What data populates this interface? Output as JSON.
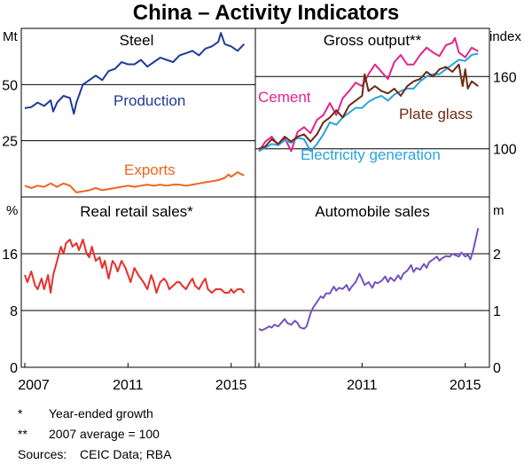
{
  "chart_data": {
    "title": "China – Activity Indicators",
    "x_axis": {
      "start": 2007.0,
      "end": 2015.8,
      "ticks": [
        2007,
        2011,
        2015
      ]
    },
    "panels": [
      {
        "id": "steel",
        "title": "Steel",
        "type": "line",
        "axis_side": "left",
        "unit": "Mt",
        "ylim": [
          0,
          75
        ],
        "yticks": [
          25,
          50
        ],
        "series": [
          {
            "name": "Production",
            "color": "#1f3b9a",
            "x": [
              2007.0,
              2007.25,
              2007.5,
              2007.75,
              2008.0,
              2008.1,
              2008.25,
              2008.5,
              2008.75,
              2008.9,
              2009.0,
              2009.25,
              2009.5,
              2009.75,
              2010.0,
              2010.25,
              2010.5,
              2010.75,
              2011.0,
              2011.25,
              2011.5,
              2011.75,
              2012.0,
              2012.25,
              2012.5,
              2012.75,
              2013.0,
              2013.25,
              2013.5,
              2013.75,
              2014.0,
              2014.25,
              2014.5,
              2014.6,
              2014.75,
              2015.0,
              2015.25,
              2015.5
            ],
            "y": [
              39.5,
              40,
              42,
              40.5,
              43,
              38,
              42,
              45,
              44,
              37,
              42,
              50,
              52,
              54,
              52,
              56,
              57,
              60,
              59,
              59,
              61,
              58,
              60,
              62,
              61,
              60,
              63,
              64,
              65,
              63,
              66,
              67,
              69,
              73,
              68,
              67,
              65,
              68
            ]
          },
          {
            "name": "Exports",
            "color": "#f0641e",
            "x": [
              2007.0,
              2007.25,
              2007.5,
              2007.75,
              2008.0,
              2008.25,
              2008.5,
              2008.75,
              2009.0,
              2009.25,
              2009.5,
              2009.75,
              2010.0,
              2010.25,
              2010.5,
              2010.75,
              2011.0,
              2011.25,
              2011.5,
              2011.75,
              2012.0,
              2012.25,
              2012.5,
              2012.75,
              2013.0,
              2013.25,
              2013.5,
              2013.75,
              2014.0,
              2014.25,
              2014.5,
              2014.75,
              2014.9,
              2015.0,
              2015.25,
              2015.5
            ],
            "y": [
              5,
              4,
              5,
              4.5,
              6,
              4.5,
              6,
              5,
              2,
              2.5,
              3,
              4,
              3,
              3.5,
              4,
              4.5,
              5,
              4.5,
              5,
              5.5,
              5,
              5.5,
              5,
              5.5,
              5.5,
              5,
              5.5,
              6,
              6.5,
              7,
              7.5,
              8.5,
              10,
              9,
              11,
              9.5
            ]
          }
        ]
      },
      {
        "id": "gross-output",
        "title": "Gross output**",
        "type": "line",
        "axis_side": "right",
        "unit": "index",
        "ylim": [
          60,
          200
        ],
        "yticks": [
          100,
          160
        ],
        "series": [
          {
            "name": "Cement",
            "color": "#e0268c",
            "x": [
              2007.0,
              2007.25,
              2007.5,
              2007.75,
              2008.0,
              2008.25,
              2008.5,
              2008.75,
              2009.0,
              2009.25,
              2009.5,
              2009.75,
              2010.0,
              2010.25,
              2010.5,
              2010.75,
              2011.0,
              2011.25,
              2011.5,
              2011.75,
              2012.0,
              2012.25,
              2012.5,
              2012.75,
              2013.0,
              2013.25,
              2013.5,
              2013.75,
              2014.0,
              2014.25,
              2014.5,
              2014.6,
              2014.75,
              2015.0,
              2015.25,
              2015.5
            ],
            "y": [
              98,
              106,
              110,
              103,
              109,
              98,
              114,
              118,
              113,
              124,
              128,
              138,
              128,
              142,
              148,
              155,
              152,
              162,
              170,
              164,
              158,
              172,
              178,
              170,
              170,
              178,
              184,
              180,
              177,
              186,
              188,
              192,
              180,
              176,
              184,
              181
            ]
          },
          {
            "name": "Electricity generation",
            "color": "#29a3dd",
            "x": [
              2007.0,
              2007.25,
              2007.5,
              2007.75,
              2008.0,
              2008.25,
              2008.5,
              2008.75,
              2009.0,
              2009.25,
              2009.5,
              2009.75,
              2010.0,
              2010.25,
              2010.5,
              2010.75,
              2011.0,
              2011.25,
              2011.5,
              2011.75,
              2012.0,
              2012.25,
              2012.5,
              2012.75,
              2013.0,
              2013.25,
              2013.5,
              2013.75,
              2014.0,
              2014.25,
              2014.5,
              2014.75,
              2015.0,
              2015.25,
              2015.5
            ],
            "y": [
              98,
              101,
              104,
              103,
              107,
              105,
              109,
              108,
              98,
              104,
              112,
              122,
              120,
              126,
              130,
              134,
              134,
              139,
              142,
              144,
              140,
              145,
              148,
              150,
              150,
              156,
              160,
              162,
              162,
              166,
              170,
              174,
              173,
              178,
              179
            ]
          },
          {
            "name": "Plate glass",
            "color": "#6e2a14",
            "x": [
              2007.0,
              2007.25,
              2007.5,
              2007.75,
              2008.0,
              2008.25,
              2008.5,
              2008.75,
              2009.0,
              2009.25,
              2009.5,
              2009.75,
              2010.0,
              2010.25,
              2010.5,
              2010.75,
              2011.0,
              2011.1,
              2011.25,
              2011.5,
              2011.75,
              2012.0,
              2012.25,
              2012.5,
              2012.75,
              2013.0,
              2013.25,
              2013.5,
              2013.75,
              2014.0,
              2014.25,
              2014.5,
              2014.75,
              2014.9,
              2015.0,
              2015.1,
              2015.25,
              2015.5
            ],
            "y": [
              100,
              102,
              108,
              104,
              110,
              106,
              110,
              112,
              106,
              112,
              122,
              126,
              132,
              126,
              136,
              140,
              144,
              162,
              148,
              152,
              148,
              146,
              150,
              144,
              152,
              156,
              158,
              164,
              160,
              166,
              168,
              164,
              170,
              152,
              166,
              150,
              156,
              152
            ]
          }
        ]
      },
      {
        "id": "retail",
        "title": "Real retail sales*",
        "type": "line",
        "axis_side": "left",
        "unit": "%",
        "ylim": [
          0,
          24
        ],
        "yticks": [
          0,
          8,
          16
        ],
        "series": [
          {
            "name": "Real retail sales",
            "color": "#e6302b",
            "x": [
              2007.0,
              2007.1,
              2007.25,
              2007.4,
              2007.5,
              2007.65,
              2007.75,
              2007.9,
              2008.0,
              2008.1,
              2008.25,
              2008.4,
              2008.5,
              2008.6,
              2008.75,
              2008.85,
              2009.0,
              2009.1,
              2009.25,
              2009.4,
              2009.5,
              2009.6,
              2009.75,
              2009.9,
              2010.0,
              2010.1,
              2010.25,
              2010.4,
              2010.5,
              2010.6,
              2010.75,
              2010.9,
              2011.0,
              2011.1,
              2011.25,
              2011.4,
              2011.5,
              2011.6,
              2011.75,
              2011.9,
              2012.0,
              2012.1,
              2012.25,
              2012.4,
              2012.5,
              2012.6,
              2012.75,
              2012.9,
              2013.0,
              2013.1,
              2013.25,
              2013.4,
              2013.5,
              2013.6,
              2013.75,
              2013.9,
              2014.0,
              2014.1,
              2014.25,
              2014.4,
              2014.5,
              2014.6,
              2014.75,
              2014.9,
              2015.0,
              2015.1,
              2015.25,
              2015.4,
              2015.5
            ],
            "y": [
              13,
              12,
              13.5,
              11.5,
              11,
              12.5,
              11,
              13,
              10.5,
              13,
              15,
              17,
              16,
              17.5,
              18,
              17,
              17.5,
              16.5,
              18,
              16,
              15.5,
              17,
              15,
              15.5,
              14,
              15,
              12.5,
              15,
              14.5,
              13.5,
              15,
              14,
              13,
              12,
              14,
              13,
              12.5,
              12,
              11,
              13,
              12,
              10.5,
              12,
              12.5,
              12,
              11,
              11.5,
              12,
              12,
              11.5,
              11,
              12,
              12.5,
              11.5,
              11,
              12,
              12.5,
              11,
              10.5,
              11,
              11,
              11,
              10.5,
              10.5,
              11,
              10.5,
              11,
              11,
              10.5
            ]
          }
        ]
      },
      {
        "id": "auto",
        "title": "Automobile sales",
        "type": "line",
        "axis_side": "right",
        "unit": "m",
        "ylim": [
          0,
          3
        ],
        "yticks": [
          0,
          1,
          2
        ],
        "series": [
          {
            "name": "Automobile sales",
            "color": "#7452c0",
            "x": [
              2007.0,
              2007.1,
              2007.25,
              2007.4,
              2007.5,
              2007.6,
              2007.75,
              2007.9,
              2008.0,
              2008.1,
              2008.25,
              2008.4,
              2008.5,
              2008.6,
              2008.75,
              2008.85,
              2009.0,
              2009.1,
              2009.25,
              2009.4,
              2009.5,
              2009.6,
              2009.75,
              2009.9,
              2010.0,
              2010.1,
              2010.25,
              2010.4,
              2010.5,
              2010.6,
              2010.75,
              2010.9,
              2011.0,
              2011.1,
              2011.25,
              2011.4,
              2011.5,
              2011.6,
              2011.75,
              2011.9,
              2012.0,
              2012.1,
              2012.25,
              2012.4,
              2012.5,
              2012.6,
              2012.75,
              2012.9,
              2013.0,
              2013.1,
              2013.25,
              2013.4,
              2013.5,
              2013.6,
              2013.75,
              2013.9,
              2014.0,
              2014.1,
              2014.25,
              2014.4,
              2014.5,
              2014.6,
              2014.75,
              2014.85,
              2015.0,
              2015.1,
              2015.2,
              2015.3,
              2015.4,
              2015.5
            ],
            "y": [
              0.68,
              0.65,
              0.68,
              0.72,
              0.7,
              0.75,
              0.72,
              0.8,
              0.85,
              0.78,
              0.75,
              0.82,
              0.78,
              0.7,
              0.68,
              0.72,
              0.95,
              1.05,
              1.15,
              1.25,
              1.22,
              1.3,
              1.3,
              1.42,
              1.35,
              1.4,
              1.38,
              1.45,
              1.35,
              1.42,
              1.5,
              1.65,
              1.55,
              1.45,
              1.5,
              1.4,
              1.5,
              1.48,
              1.52,
              1.6,
              1.5,
              1.58,
              1.52,
              1.62,
              1.55,
              1.65,
              1.7,
              1.8,
              1.68,
              1.75,
              1.72,
              1.82,
              1.75,
              1.85,
              1.9,
              1.95,
              1.88,
              1.92,
              1.96,
              1.95,
              2.0,
              1.98,
              1.95,
              2.02,
              1.95,
              1.98,
              1.9,
              2.05,
              2.25,
              2.45
            ]
          }
        ]
      }
    ],
    "x_tick_labels": [
      "2007",
      "2011",
      "2015"
    ],
    "footnotes": [
      {
        "marker": "*",
        "text": "Year-ended growth"
      },
      {
        "marker": "**",
        "text": "2007 average = 100"
      }
    ],
    "sources": {
      "label": "Sources:",
      "text": "CEIC Data; RBA"
    }
  }
}
